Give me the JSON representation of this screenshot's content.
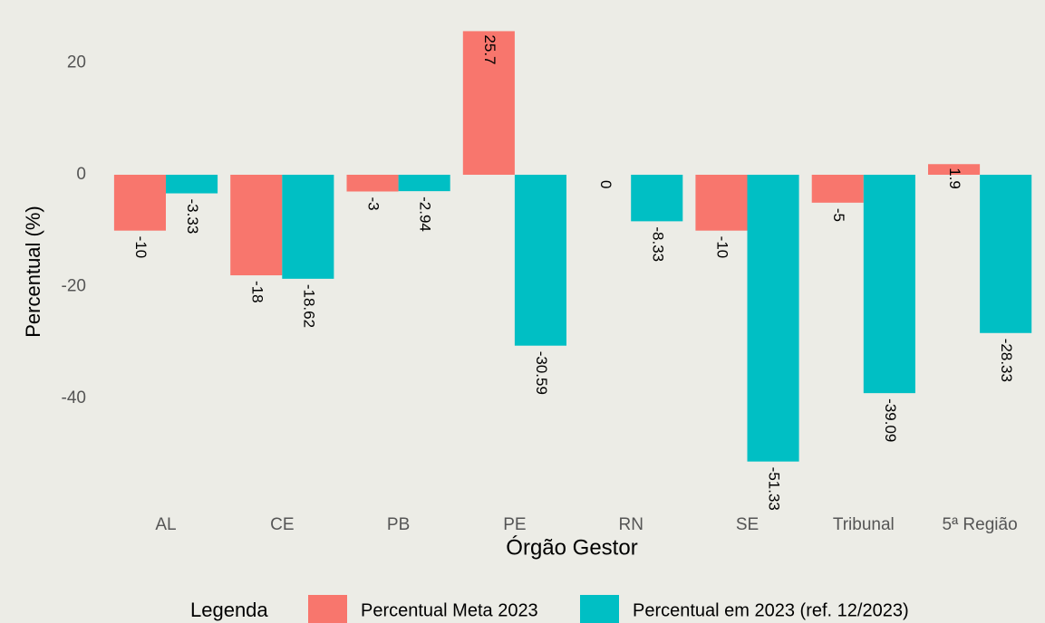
{
  "chart_data": {
    "type": "bar",
    "x_label": "Órgão Gestor",
    "y_label": "Percentual (%)",
    "legend_title": "Legenda",
    "categories": [
      "AL",
      "CE",
      "PB",
      "PE",
      "RN",
      "SE",
      "Tribunal",
      "5ª Região"
    ],
    "series": [
      {
        "name": "Percentual Meta 2023",
        "color": "#F8766D",
        "values": [
          -10,
          -18,
          -3,
          25.7,
          0,
          -10,
          -5,
          1.9
        ]
      },
      {
        "name": "Percentual em 2023 (ref. 12/2023)",
        "color": "#00BFC4",
        "values": [
          -3.33,
          -18.62,
          -2.94,
          -30.59,
          -8.33,
          -51.33,
          -39.09,
          -28.33
        ]
      }
    ],
    "ylim": [
      -62,
      27
    ],
    "yticks": [
      -40,
      -20,
      0,
      20
    ],
    "grid": false,
    "legend_position": "bottom"
  }
}
